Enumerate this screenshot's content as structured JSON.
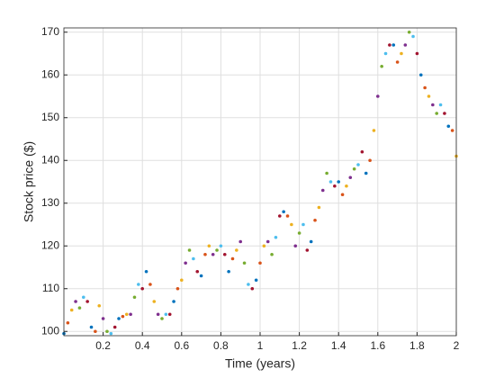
{
  "chart_data": {
    "type": "scatter",
    "xlabel": "Time (years)",
    "ylabel": "Stock price ($)",
    "xlim": [
      0,
      2
    ],
    "ylim": [
      99,
      171
    ],
    "xticks": [
      0.2,
      0.4,
      0.6,
      0.8,
      1,
      1.2,
      1.4,
      1.6,
      1.8,
      2
    ],
    "yticks": [
      100,
      110,
      120,
      130,
      140,
      150,
      160,
      170
    ],
    "grid": true,
    "colors": [
      "#0072BD",
      "#D95319",
      "#EDB120",
      "#7E2F8E",
      "#77AC30",
      "#4DBEEE",
      "#A2142F"
    ],
    "x": [
      0,
      0.02,
      0.04,
      0.06,
      0.08,
      0.1,
      0.12,
      0.14,
      0.16,
      0.18,
      0.2,
      0.22,
      0.24,
      0.26,
      0.28,
      0.3,
      0.32,
      0.34,
      0.36,
      0.38,
      0.4,
      0.42,
      0.44,
      0.46,
      0.48,
      0.5,
      0.52,
      0.54,
      0.56,
      0.58,
      0.6,
      0.62,
      0.64,
      0.66,
      0.68,
      0.7,
      0.72,
      0.74,
      0.76,
      0.78,
      0.8,
      0.82,
      0.84,
      0.86,
      0.88,
      0.9,
      0.92,
      0.94,
      0.96,
      0.98,
      1,
      1.02,
      1.04,
      1.06,
      1.08,
      1.1,
      1.12,
      1.14,
      1.16,
      1.18,
      1.2,
      1.22,
      1.24,
      1.26,
      1.28,
      1.3,
      1.32,
      1.34,
      1.36,
      1.38,
      1.4,
      1.42,
      1.44,
      1.46,
      1.48,
      1.5,
      1.52,
      1.54,
      1.56,
      1.58,
      1.6,
      1.62,
      1.64,
      1.66,
      1.68,
      1.7,
      1.72,
      1.74,
      1.76,
      1.78,
      1.8,
      1.82,
      1.84,
      1.86,
      1.88,
      1.9,
      1.92,
      1.94,
      1.96,
      1.98,
      2
    ],
    "values": [
      99.5,
      102,
      105,
      107,
      105.5,
      108,
      107,
      101,
      100,
      106,
      103,
      100,
      99.5,
      101,
      103,
      103.5,
      104,
      104,
      108,
      111,
      110,
      114,
      111,
      107,
      104,
      103,
      104,
      104,
      107,
      110,
      112,
      116,
      119,
      117,
      114,
      113,
      118,
      120,
      118,
      119,
      120,
      118,
      114,
      117,
      119,
      121,
      116,
      111,
      110,
      112,
      116,
      120,
      121,
      118,
      122,
      127,
      128,
      127,
      125,
      120,
      123,
      125,
      119,
      121,
      126,
      129,
      133,
      137,
      135,
      134,
      135,
      132,
      134,
      136,
      138,
      139,
      142,
      137,
      140,
      147,
      155,
      162,
      165,
      167,
      167,
      163,
      165,
      167,
      170,
      169,
      165,
      160,
      157,
      155,
      153,
      151,
      153,
      151,
      148,
      147,
      141
    ]
  }
}
